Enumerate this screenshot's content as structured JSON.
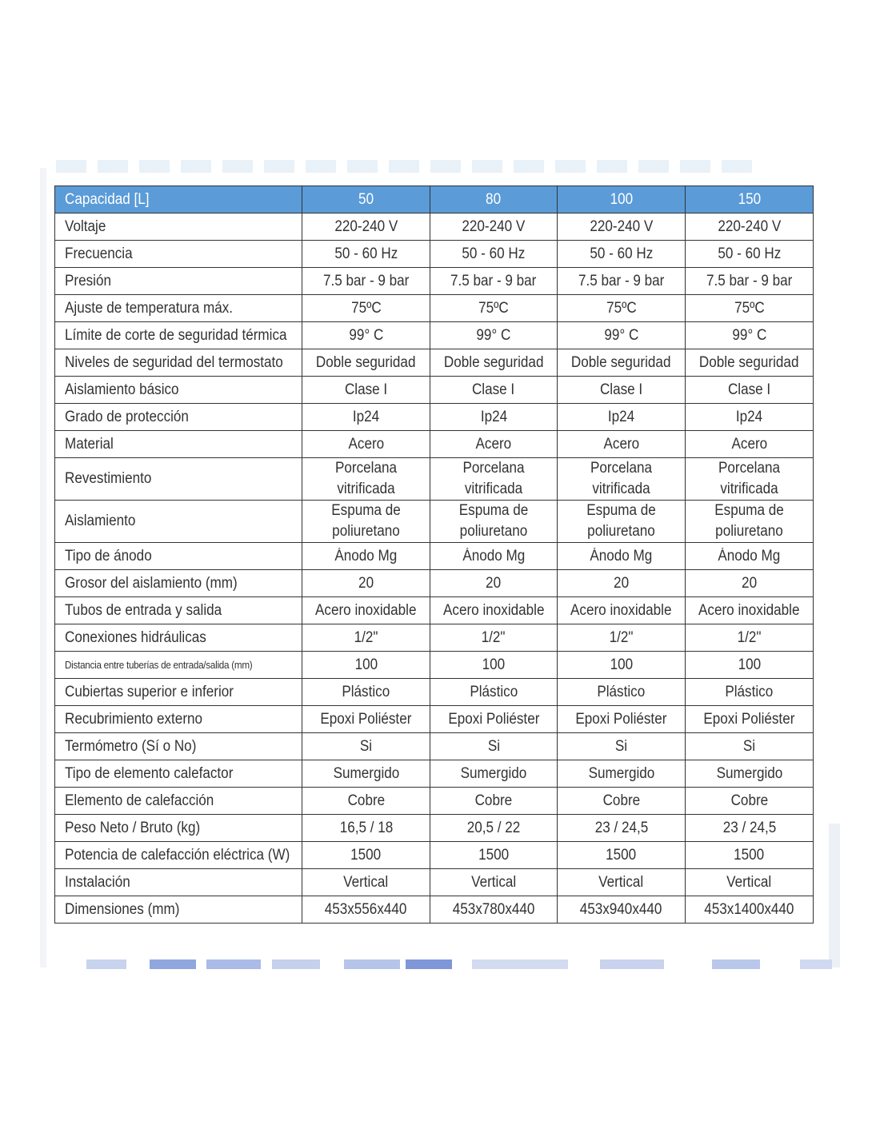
{
  "table": {
    "header": {
      "label": "Capacidad [L]",
      "values": [
        "50",
        "80",
        "100",
        "150"
      ]
    },
    "rows": [
      {
        "label": "Voltaje",
        "values": [
          "220-240 V",
          "220-240 V",
          "220-240 V",
          "220-240 V"
        ]
      },
      {
        "label": "Frecuencia",
        "values": [
          "50 - 60 Hz",
          "50 - 60 Hz",
          "50 - 60 Hz",
          "50 - 60 Hz"
        ]
      },
      {
        "label": "Presión",
        "values": [
          "7.5 bar - 9 bar",
          "7.5 bar - 9 bar",
          "7.5 bar - 9 bar",
          "7.5 bar - 9 bar"
        ]
      },
      {
        "label": "Ajuste de temperatura máx.",
        "values": [
          "75ºC",
          "75ºC",
          "75ºC",
          "75ºC"
        ]
      },
      {
        "label": "Límite de corte de seguridad térmica",
        "values": [
          "99° C",
          "99° C",
          "99° C",
          "99° C"
        ]
      },
      {
        "label": "Niveles de seguridad del termostato",
        "values": [
          "Doble seguridad",
          "Doble seguridad",
          "Doble seguridad",
          "Doble seguridad"
        ]
      },
      {
        "label": "Aislamiento básico",
        "values": [
          "Clase I",
          "Clase I",
          "Clase I",
          "Clase I"
        ]
      },
      {
        "label": "Grado de protección",
        "values": [
          "Ip24",
          "Ip24",
          "Ip24",
          "Ip24"
        ]
      },
      {
        "label": "Material",
        "values": [
          "Acero",
          "Acero",
          "Acero",
          "Acero"
        ]
      },
      {
        "label": "Revestimiento",
        "values": [
          "Porcelana vitrificada",
          "Porcelana vitrificada",
          "Porcelana vitrificada",
          "Porcelana vitrificada"
        ]
      },
      {
        "label": "Aislamiento",
        "values": [
          "Espuma de poliuretano",
          "Espuma de poliuretano",
          "Espuma de poliuretano",
          "Espuma de poliuretano"
        ]
      },
      {
        "label": "Tipo de ánodo",
        "values": [
          "Ánodo Mg",
          "Ánodo Mg",
          "Ánodo Mg",
          "Ánodo Mg"
        ]
      },
      {
        "label": "Grosor del aislamiento (mm)",
        "values": [
          "20",
          "20",
          "20",
          "20"
        ]
      },
      {
        "label": "Tubos de entrada y salida",
        "values": [
          "Acero inoxidable",
          "Acero inoxidable",
          "Acero inoxidable",
          "Acero inoxidable"
        ]
      },
      {
        "label": "Conexiones hidráulicas",
        "values": [
          "1/2\"",
          "1/2\"",
          "1/2\"",
          "1/2\""
        ]
      },
      {
        "label": "Distancia entre tuberías de entrada/salida (mm)",
        "values": [
          "100",
          "100",
          "100",
          "100"
        ]
      },
      {
        "label": "Cubiertas superior e inferior",
        "values": [
          "Plástico",
          "Plástico",
          "Plástico",
          "Plástico"
        ]
      },
      {
        "label": "Recubrimiento externo",
        "values": [
          "Epoxi Poliéster",
          "Epoxi Poliéster",
          "Epoxi Poliéster",
          "Epoxi Poliéster"
        ]
      },
      {
        "label": "Termómetro (Sí o No)",
        "values": [
          "Si",
          "Si",
          "Si",
          "Si"
        ]
      },
      {
        "label": "Tipo de elemento calefactor",
        "values": [
          "Sumergido",
          "Sumergido",
          "Sumergido",
          "Sumergido"
        ]
      },
      {
        "label": "Elemento de calefacción",
        "values": [
          "Cobre",
          "Cobre",
          "Cobre",
          "Cobre"
        ]
      },
      {
        "label": "Peso Neto / Bruto (kg)",
        "values": [
          "16,5 / 18",
          "20,5 / 22",
          "23 / 24,5",
          "23 / 24,5"
        ]
      },
      {
        "label": "Potencia de calefacción eléctrica (W)",
        "values": [
          "1500",
          "1500",
          "1500",
          "1500"
        ]
      },
      {
        "label": "Instalación",
        "values": [
          "Vertical",
          "Vertical",
          "Vertical",
          "Vertical"
        ]
      },
      {
        "label": "Dimensiones (mm)",
        "values": [
          "453x556x440",
          "453x780x440",
          "453x940x440",
          "453x1400x440"
        ]
      }
    ]
  },
  "colors": {
    "header_bg": "#5a9bd8",
    "header_text": "#ffffff",
    "text": "#333333",
    "border": "#333333"
  }
}
